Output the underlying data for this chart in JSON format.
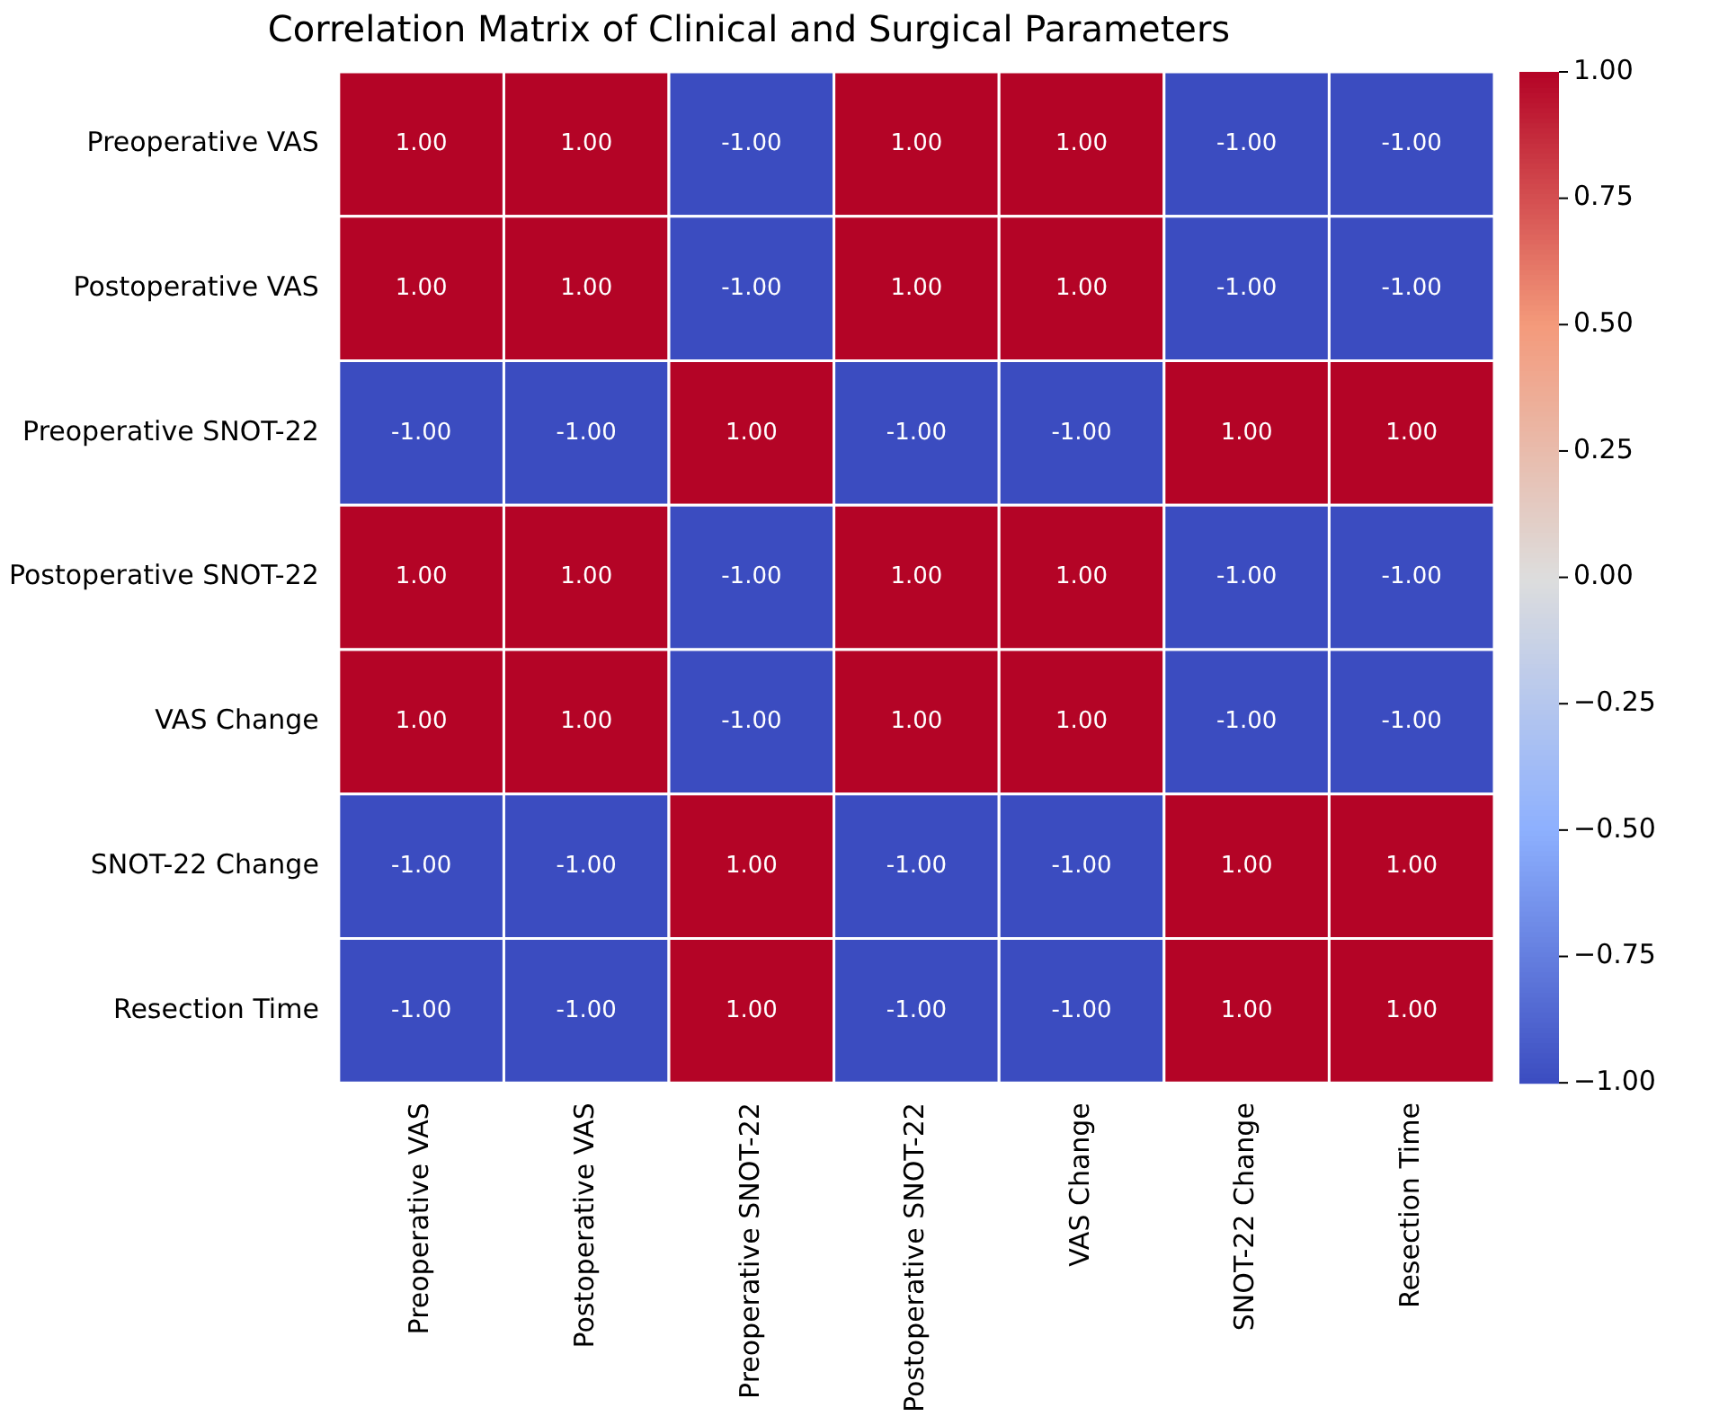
{
  "chart_data": {
    "type": "heatmap",
    "title": "Correlation Matrix of Clinical and Surgical Parameters",
    "categories": [
      "Preoperative VAS",
      "Postoperative VAS",
      "Preoperative SNOT-22",
      "Postoperative SNOT-22",
      "VAS Change",
      "SNOT-22 Change",
      "Resection Time"
    ],
    "y_categories": [
      "Preoperative VAS",
      "Postoperative VAS",
      "Preoperative SNOT-22",
      "Postoperative SNOT-22",
      "VAS Change",
      "SNOT-22 Change",
      "Resection Time"
    ],
    "cells": [
      [
        1,
        1,
        -1,
        1,
        1,
        -1,
        -1
      ],
      [
        1,
        1,
        -1,
        1,
        1,
        -1,
        -1
      ],
      [
        -1,
        -1,
        1,
        -1,
        -1,
        1,
        1
      ],
      [
        1,
        1,
        -1,
        1,
        1,
        -1,
        -1
      ],
      [
        1,
        1,
        -1,
        1,
        1,
        -1,
        -1
      ],
      [
        -1,
        -1,
        1,
        -1,
        -1,
        1,
        1
      ],
      [
        -1,
        -1,
        1,
        -1,
        -1,
        1,
        1
      ]
    ],
    "cell_labels": [
      [
        "1.00",
        "1.00",
        "-1.00",
        "1.00",
        "1.00",
        "-1.00",
        "-1.00"
      ],
      [
        "1.00",
        "1.00",
        "-1.00",
        "1.00",
        "1.00",
        "-1.00",
        "-1.00"
      ],
      [
        "-1.00",
        "-1.00",
        "1.00",
        "-1.00",
        "-1.00",
        "1.00",
        "1.00"
      ],
      [
        "1.00",
        "1.00",
        "-1.00",
        "1.00",
        "1.00",
        "-1.00",
        "-1.00"
      ],
      [
        "1.00",
        "1.00",
        "-1.00",
        "1.00",
        "1.00",
        "-1.00",
        "-1.00"
      ],
      [
        "-1.00",
        "-1.00",
        "1.00",
        "-1.00",
        "-1.00",
        "1.00",
        "1.00"
      ],
      [
        "-1.00",
        "-1.00",
        "1.00",
        "-1.00",
        "-1.00",
        "1.00",
        "1.00"
      ]
    ],
    "clim": [
      -1,
      1
    ],
    "cticks": [
      {
        "value": -1,
        "label": "−1.00"
      },
      {
        "value": -0.75,
        "label": "−0.75"
      },
      {
        "value": -0.5,
        "label": "−0.50"
      },
      {
        "value": -0.25,
        "label": "−0.25"
      },
      {
        "value": 0,
        "label": "0.00"
      },
      {
        "value": 0.25,
        "label": "0.25"
      },
      {
        "value": 0.5,
        "label": "0.50"
      },
      {
        "value": 0.75,
        "label": "0.75"
      },
      {
        "value": 1,
        "label": "1.00"
      }
    ]
  }
}
